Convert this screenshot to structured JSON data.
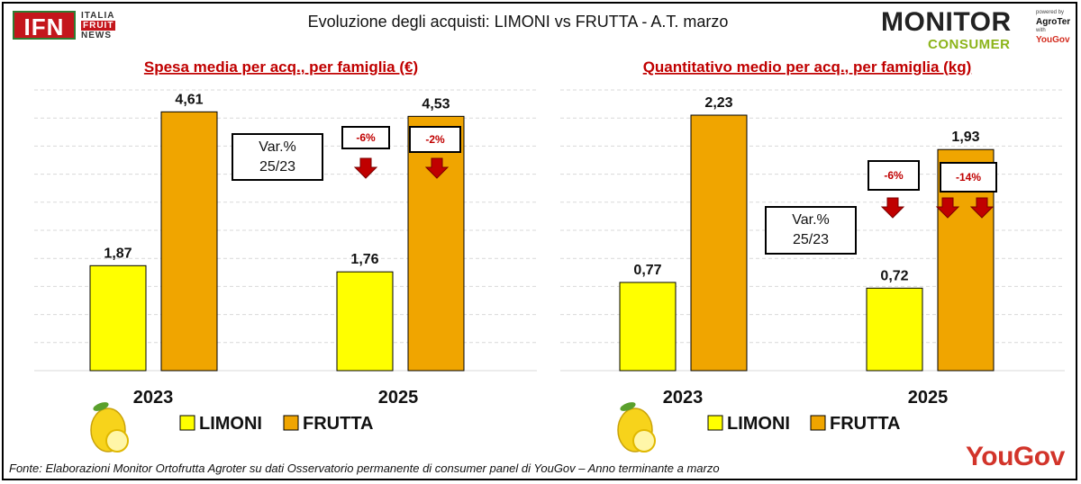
{
  "header": {
    "logo_left": {
      "main": "IFN",
      "line1": "ITALIA",
      "line2": "FRUIT",
      "line3": "NEWS"
    },
    "title": "Evoluzione degli acquisti: LIMONI vs FRUTTA  - A.T. marzo",
    "logo_right": {
      "monitor": "MONITOR",
      "consumer": "CONSUMER",
      "powered_by": "powered by",
      "agroter": "AgroTer",
      "with": "with",
      "yougov": "YouGov"
    }
  },
  "footer": {
    "source": "Fonte: Elaborazioni Monitor Ortofrutta Agroter su dati Osservatorio permanente di consumer panel di YouGov  – Anno terminante a marzo",
    "brand": "YouGov"
  },
  "colors": {
    "limoni": "#ffff00",
    "frutta": "#f0a500",
    "title_red": "#c00000",
    "arrow_red": "#c00000",
    "grid": "#d9d9d9"
  },
  "icons": [
    "lemon-icon",
    "arrow-down-icon"
  ],
  "chart_data": [
    {
      "type": "bar",
      "title": "Spesa media per acq., per famiglia (€)",
      "categories": [
        "2023",
        "2025"
      ],
      "series": [
        {
          "name": "LIMONI",
          "values": [
            1.87,
            1.76
          ],
          "labels": [
            "1,87",
            "1,76"
          ]
        },
        {
          "name": "FRUTTA",
          "values": [
            4.61,
            4.53
          ],
          "labels": [
            "4,61",
            "4,53"
          ]
        }
      ],
      "ylim": [
        0,
        5
      ],
      "grid": true,
      "var_label": "Var.%\n25/23",
      "variations": {
        "LIMONI": "-6%",
        "FRUTTA": "-2%"
      },
      "legend": "bottom"
    },
    {
      "type": "bar",
      "title": "Quantitativo medio per acq., per famiglia (kg)",
      "categories": [
        "2023",
        "2025"
      ],
      "series": [
        {
          "name": "LIMONI",
          "values": [
            0.77,
            0.72
          ],
          "labels": [
            "0,77",
            "0,72"
          ]
        },
        {
          "name": "FRUTTA",
          "values": [
            2.23,
            1.93
          ],
          "labels": [
            "2,23",
            "1,93"
          ]
        }
      ],
      "ylim": [
        0,
        2.45
      ],
      "grid": true,
      "var_label": "Var.%\n25/23",
      "variations": {
        "LIMONI": "-6%",
        "FRUTTA": "-14%"
      },
      "legend": "bottom"
    }
  ]
}
